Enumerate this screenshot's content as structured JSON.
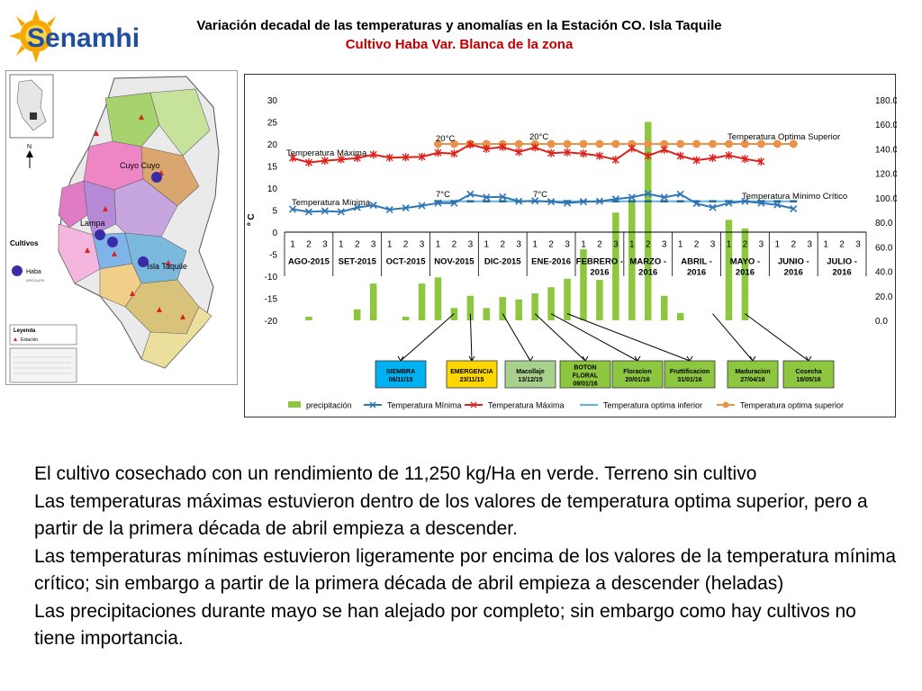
{
  "logo": {
    "text": "Senamhi",
    "icon": "sun-logo-icon"
  },
  "title": {
    "line1": "Variación decadal de las temperaturas y anomalías en la Estación CO. Isla Taquile",
    "line2": "Cultivo Haba Var. Blanca de la zona"
  },
  "map": {
    "places": [
      "Cuyo Cuyo",
      "Lampa",
      "Isla Taquile"
    ],
    "legend_title": "Cultivos",
    "legend_item": "Haba",
    "legend_item_sub": "AREQUIPA",
    "box_title": "Leyenda",
    "box_item": "Estación",
    "colors": {
      "haba_dot": "#3a2ca8",
      "lake": "#7ab8de"
    }
  },
  "chart_data": {
    "type": "bar",
    "ylabel": "º C",
    "y_left_range": [
      -20,
      30
    ],
    "y_left_ticks": [
      "30",
      "25",
      "20",
      "15",
      "10",
      "5",
      "0",
      "-5",
      "-10",
      "-15",
      "-20"
    ],
    "y_right_range": [
      0,
      180
    ],
    "y_right_ticks": [
      "180.0",
      "160.0",
      "140.0",
      "120.0",
      "100.0",
      "80.0",
      "60.0",
      "40.0",
      "20.0",
      "0.0"
    ],
    "decades": [
      "1",
      "2",
      "3"
    ],
    "months": [
      "AGO-2015",
      "SET-2015",
      "OCT-2015",
      "NOV-2015",
      "DIC-2015",
      "ENE-2016",
      "FEBRERO - 2016",
      "MARZO - 2016",
      "ABRIL - 2016",
      "MAYO - 2016",
      "JUNIO - 2016",
      "JULIO - 2016"
    ],
    "series": [
      {
        "name": "precipitación",
        "axis": "right",
        "color": "#8dc63f",
        "values": [
          0,
          3,
          0,
          0,
          9,
          30,
          0,
          3,
          30,
          35,
          10,
          20,
          10,
          19,
          17,
          22,
          27,
          34,
          58,
          33,
          88,
          98,
          162,
          20,
          6,
          0,
          0,
          82,
          75,
          0,
          0,
          0,
          0,
          0,
          0,
          0
        ]
      },
      {
        "name": "Temperatura Mínima",
        "axis": "left",
        "color": "#2e75b6",
        "values": [
          5.2,
          4.6,
          4.8,
          4.6,
          5.6,
          6.1,
          5.1,
          5.5,
          6.0,
          6.6,
          6.6,
          8.6,
          7.9,
          8.0,
          7.0,
          7.1,
          6.9,
          6.6,
          6.9,
          7.0,
          7.5,
          7.9,
          8.7,
          7.9,
          8.6,
          6.5,
          5.6,
          6.6,
          7.0,
          6.6,
          6.2,
          5.3,
          null,
          null,
          null,
          null
        ]
      },
      {
        "name": "Temperatura Máxima",
        "axis": "left",
        "color": "#e0201b",
        "values": [
          16.8,
          15.8,
          16.2,
          16.5,
          16.8,
          17.6,
          16.9,
          17.0,
          17.1,
          18.0,
          17.8,
          19.9,
          18.9,
          19.3,
          18.2,
          19.2,
          17.9,
          18.1,
          17.8,
          17.3,
          16.4,
          19.0,
          17.3,
          18.7,
          17.3,
          16.3,
          16.8,
          17.4,
          16.6,
          16.0,
          null,
          null,
          null,
          null,
          null,
          null
        ]
      },
      {
        "name": "Temperatura optima inferior",
        "axis": "left",
        "color": "#5db4e5",
        "values": [
          null,
          null,
          null,
          null,
          null,
          null,
          null,
          null,
          null,
          7,
          7,
          7,
          7,
          7,
          7,
          7,
          7,
          7,
          7,
          7,
          7,
          7,
          7,
          7,
          7,
          7,
          7,
          7,
          7,
          7,
          7,
          7,
          null,
          null,
          null,
          null
        ]
      },
      {
        "name": "Temperatura optima superior",
        "axis": "left",
        "color": "#e8924a",
        "values": [
          null,
          null,
          null,
          null,
          null,
          null,
          null,
          null,
          null,
          20,
          20,
          20,
          20,
          20,
          20,
          20,
          20,
          20,
          20,
          20,
          20,
          20,
          20,
          20,
          20,
          20,
          20,
          20,
          20,
          20,
          20,
          20,
          null,
          null,
          null,
          null
        ]
      }
    ],
    "annotations": {
      "label_max": "Temperatura Máxima",
      "label_min": "Temperatura Mínima",
      "label_opt_sup": "Temperatura Optima Superior",
      "label_opt_inf": "Temperatura Mínimo Crítico",
      "t20a": "20°C",
      "t20b": "20°C",
      "t7a": "7°C",
      "t7b": "7°C"
    },
    "phenology": [
      {
        "line1": "SIEMBRA",
        "line2": "06/11/15",
        "line3": "",
        "fill": "#00b0f0",
        "decade_index": 10
      },
      {
        "line1": "EMERGENCIA",
        "line2": "23/11/15",
        "line3": "",
        "fill": "#ffd700",
        "decade_index": 11
      },
      {
        "line1": "Macollaje",
        "line2": "13/12/15",
        "line3": "",
        "fill": "#a9d18e",
        "decade_index": 13
      },
      {
        "line1": "BOTON",
        "line2": "FLORAL",
        "line3": "09/01/16",
        "fill": "#8dc63f",
        "decade_index": 15
      },
      {
        "line1": "Floracion",
        "line2": "20/01/16",
        "line3": "",
        "fill": "#8dc63f",
        "decade_index": 16
      },
      {
        "line1": "Fruttificacion",
        "line2": "31/01/16",
        "line3": "",
        "fill": "#8dc63f",
        "decade_index": 17
      },
      {
        "line1": "Maduracion",
        "line2": "27/04/16",
        "line3": "",
        "fill": "#8dc63f",
        "decade_index": 26
      },
      {
        "line1": "Cosecha",
        "line2": "18/05/16",
        "line3": "",
        "fill": "#8dc63f",
        "decade_index": 28
      }
    ]
  },
  "body": {
    "p1": "El cultivo cosechado con un rendimiento de 11,250 kg/Ha en verde. Terreno sin cultivo",
    "p2": "Las temperaturas máximas estuvieron dentro de los valores de temperatura optima superior, pero a partir de la primera década de abril empieza a descender.",
    "p3": "Las temperaturas mínimas estuvieron ligeramente por encima de los valores de la temperatura mínima crítico; sin embargo a partir de la primera década de abril empieza a descender (heladas)",
    "p4": "Las precipitaciones durante mayo se han alejado por completo; sin embargo como hay cultivos no tiene importancia."
  }
}
